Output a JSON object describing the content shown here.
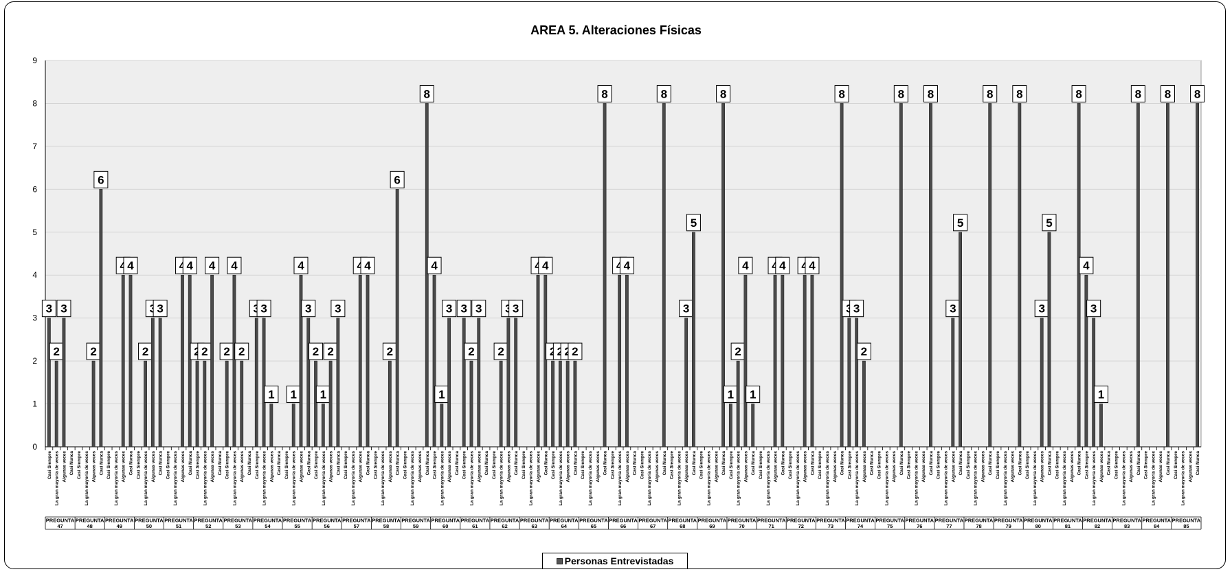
{
  "chart_data": {
    "type": "bar",
    "title": "AREA 5. Alteraciones Físicas",
    "xlabel": "",
    "ylabel": "",
    "ylim": [
      0,
      9
    ],
    "yticks": [
      0,
      1,
      2,
      3,
      4,
      5,
      6,
      7,
      8,
      9
    ],
    "grid": true,
    "legend": "bottom",
    "colors": {
      "bar": "#4a4a4a",
      "plot_bg": "#eeeeee",
      "grid": "#d4d4d4"
    },
    "answer_options": [
      "Casi Siempre",
      "La gran mayoría de veces",
      "Algunas veces",
      "Casi Nunca"
    ],
    "group_label_prefix": "PREGUNTA",
    "questions": [
      "47",
      "48",
      "49",
      "50",
      "51",
      "52",
      "53",
      "54",
      "55",
      "56",
      "57",
      "58",
      "59",
      "60",
      "61",
      "62",
      "63",
      "64",
      "65",
      "66",
      "67",
      "68",
      "69",
      "70",
      "71",
      "72",
      "73",
      "74",
      "75",
      "76",
      "77",
      "78",
      "79",
      "80",
      "81",
      "82",
      "83",
      "84",
      "85"
    ],
    "series": [
      {
        "name": "Personas Entrevistadas",
        "values": [
          [
            3,
            2,
            3,
            null
          ],
          [
            null,
            null,
            2,
            6
          ],
          [
            null,
            null,
            4,
            4
          ],
          [
            null,
            2,
            3,
            3
          ],
          [
            null,
            null,
            4,
            4
          ],
          [
            2,
            2,
            4,
            null
          ],
          [
            2,
            4,
            2,
            null
          ],
          [
            3,
            3,
            1,
            null
          ],
          [
            null,
            1,
            4,
            3
          ],
          [
            2,
            1,
            2,
            3
          ],
          [
            null,
            null,
            4,
            4
          ],
          [
            null,
            null,
            2,
            6
          ],
          [
            null,
            null,
            null,
            8
          ],
          [
            4,
            1,
            3,
            null
          ],
          [
            3,
            2,
            3,
            null
          ],
          [
            null,
            2,
            3,
            3
          ],
          [
            null,
            null,
            4,
            4
          ],
          [
            2,
            2,
            2,
            2
          ],
          [
            null,
            null,
            null,
            8
          ],
          [
            null,
            4,
            4,
            null
          ],
          [
            null,
            null,
            null,
            8
          ],
          [
            null,
            null,
            3,
            5
          ],
          [
            null,
            null,
            null,
            8
          ],
          [
            1,
            2,
            4,
            1
          ],
          [
            null,
            null,
            4,
            4
          ],
          [
            null,
            null,
            4,
            4
          ],
          [
            null,
            null,
            null,
            8
          ],
          [
            3,
            3,
            2,
            null
          ],
          [
            null,
            null,
            null,
            8
          ],
          [
            null,
            null,
            null,
            8
          ],
          [
            null,
            null,
            3,
            5
          ],
          [
            null,
            null,
            null,
            8
          ],
          [
            null,
            null,
            null,
            8
          ],
          [
            null,
            null,
            3,
            5
          ],
          [
            null,
            null,
            null,
            8
          ],
          [
            4,
            3,
            1,
            null
          ],
          [
            null,
            null,
            null,
            8
          ],
          [
            null,
            null,
            null,
            8
          ],
          [
            null,
            null,
            null,
            8
          ]
        ]
      }
    ]
  }
}
